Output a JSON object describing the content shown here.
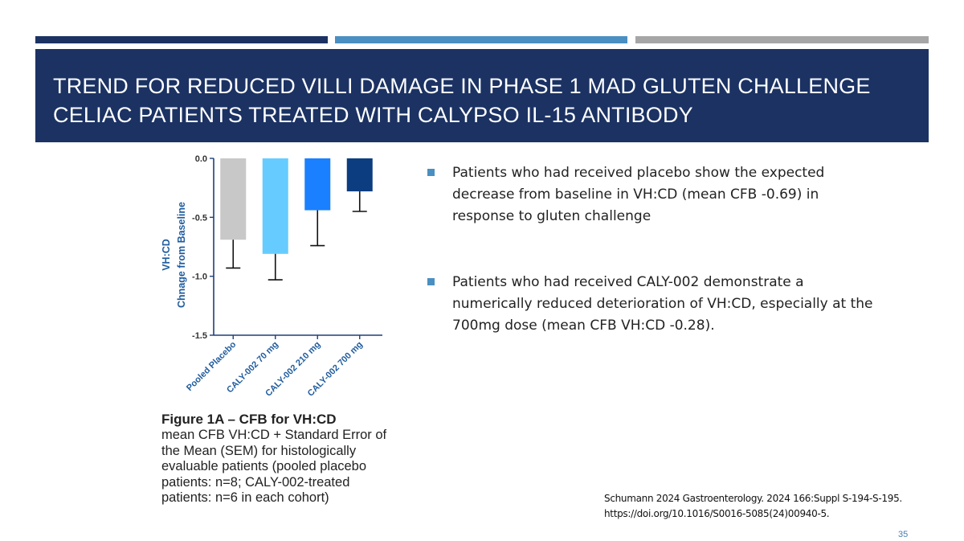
{
  "colors": {
    "bar_dark": "#1b3263",
    "bar_mid": "#4a8fc1",
    "bar_gray": "#a6a6a6",
    "title_band": "#1b3263",
    "title_text": "#ffffff",
    "bullet_marker": "#4a8fc1",
    "axis": "#1f3f7a",
    "axis_label": "#1f5c9e",
    "page_number": "#4a7fb5"
  },
  "slide": {
    "title": "TREND FOR REDUCED VILLI DAMAGE IN PHASE 1 MAD GLUTEN CHALLENGE CELIAC PATIENTS TREATED WITH CALYPSO IL-15 ANTIBODY",
    "bullets": [
      "Patients who had received placebo show the expected decrease from baseline in VH:CD (mean CFB -0.69) in response to gluten challenge",
      "Patients who had received CALY-002 demonstrate a numerically reduced deterioration of VH:CD, especially at the 700mg dose (mean CFB VH:CD -0.28)."
    ],
    "reference": "Schumann 2024 Gastroenterology. 2024 166:Suppl S-194-S-195. https://doi.org/10.1016/S0016-5085(24)00940-5.",
    "page_number": "35"
  },
  "figure": {
    "caption_title": "Figure 1A – CFB for VH:CD",
    "caption_body": "mean CFB VH:CD + Standard Error of the Mean (SEM) for histologically evaluable patients (pooled placebo patients: n=8; CALY-002-treated patients: n=6 in each cohort)"
  },
  "chart_data": {
    "type": "bar",
    "title": "",
    "xlabel": "",
    "ylabel": "VH:CD",
    "ylabel_line2": "Chnage from Baseline",
    "ylim": [
      -1.5,
      0.0
    ],
    "yticks": [
      0.0,
      -0.5,
      -1.0,
      -1.5
    ],
    "ytick_labels": [
      "0.0",
      "-0.5",
      "-1.0",
      "-1.5"
    ],
    "categories": [
      "Pooled Placebo",
      "CALY-002 70 mg",
      "CALY-002 210 mg",
      "CALY-002 700 mg"
    ],
    "values": [
      -0.69,
      -0.81,
      -0.44,
      -0.28
    ],
    "errors": [
      0.24,
      0.22,
      0.3,
      0.17
    ],
    "bar_colors": [
      "#c8c8c8",
      "#66ccff",
      "#1a80ff",
      "#0c3d80"
    ],
    "grid": false,
    "legend": "none"
  }
}
